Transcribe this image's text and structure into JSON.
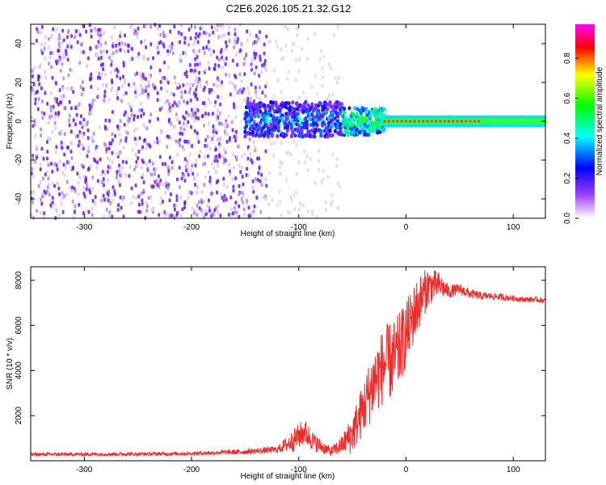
{
  "title": "C2E6.2026.105.21.32.G12",
  "colors": {
    "snr_line": "#ee2b2b",
    "spectrogram_dots": "#6a1cf0",
    "axis": "#000000"
  },
  "chart_data": [
    {
      "type": "heatmap",
      "title": "C2E6.2026.105.21.32.G12",
      "xlabel": "Height of straight line (km)",
      "ylabel": "Frequency (Hz)",
      "xlim": [
        -350,
        130
      ],
      "ylim": [
        -50,
        50
      ],
      "x_ticks": [
        -300,
        -200,
        -100,
        0,
        100
      ],
      "y_ticks": [
        -40,
        -20,
        0,
        20,
        40
      ],
      "colorbar": {
        "label": "Normalized spectral amplitude",
        "range": [
          0,
          0.97
        ],
        "ticks": [
          "0.0",
          "0.2",
          "0.4",
          "0.6",
          "0.8"
        ],
        "colormap": [
          "#ffffff",
          "#8a2be2",
          "#0000ff",
          "#00ffff",
          "#00ff00",
          "#ffff00",
          "#ff0000",
          "#ff00ff"
        ]
      },
      "features": [
        {
          "description": "scattered noise",
          "x_range": [
            -350,
            -130
          ],
          "freq_range": [
            -50,
            50
          ],
          "amplitude": 0.1
        },
        {
          "description": "broad signal",
          "x_range": [
            -150,
            -60
          ],
          "freq_range": [
            -10,
            8
          ],
          "amplitude": 0.35
        },
        {
          "description": "converging signal",
          "x_range": [
            -60,
            -20
          ],
          "freq_range": [
            -8,
            12
          ],
          "amplitude": 0.55
        },
        {
          "description": "narrow carrier line",
          "x_range": [
            -20,
            130
          ],
          "freq_range": [
            -3,
            3
          ],
          "amplitude": 0.85
        }
      ],
      "grid": false
    },
    {
      "type": "line",
      "title": "",
      "xlabel": "Height of straight line (km)",
      "ylabel": "SNR (10 * v/v)",
      "xlim": [
        -350,
        130
      ],
      "ylim": [
        0,
        8600
      ],
      "x_ticks": [
        -300,
        -200,
        -100,
        0,
        100
      ],
      "y_ticks": [
        2000,
        4000,
        6000,
        8000
      ],
      "series": [
        {
          "color": "#ee2b2b",
          "x": [
            -350,
            -300,
            -250,
            -200,
            -150,
            -120,
            -105,
            -95,
            -85,
            -70,
            -60,
            -50,
            -40,
            -30,
            -20,
            -10,
            0,
            10,
            20,
            30,
            40,
            50,
            60,
            70,
            80,
            90,
            100,
            110,
            120,
            130
          ],
          "y": [
            280,
            290,
            300,
            320,
            400,
            500,
            900,
            1300,
            800,
            400,
            700,
            1200,
            2300,
            3500,
            4300,
            4500,
            5600,
            6800,
            7700,
            7800,
            7500,
            7600,
            7400,
            7300,
            7300,
            7250,
            7200,
            7150,
            7150,
            7100
          ],
          "noise": [
            80,
            80,
            80,
            80,
            120,
            150,
            500,
            600,
            400,
            200,
            400,
            900,
            1200,
            1600,
            1700,
            1800,
            1500,
            1300,
            900,
            600,
            300,
            250,
            220,
            180,
            150,
            150,
            130,
            120,
            120,
            120
          ]
        }
      ],
      "grid": false
    }
  ]
}
